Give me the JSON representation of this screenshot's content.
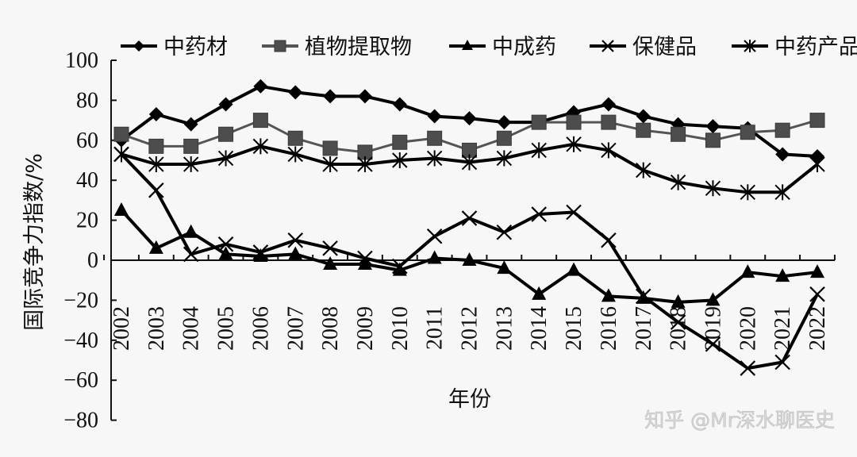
{
  "chart_data": {
    "type": "line",
    "title": "",
    "xlabel": "年份",
    "ylabel": "国际竞争力指数/%",
    "ylim": [
      -80,
      100
    ],
    "yticks": [
      100,
      80,
      60,
      40,
      20,
      0,
      -20,
      -40,
      -60,
      -80
    ],
    "grid": false,
    "legend_position": "top",
    "x": [
      "2002",
      "2003",
      "2004",
      "2005",
      "2006",
      "2007",
      "2008",
      "2009",
      "2010",
      "2011",
      "2012",
      "2013",
      "2014",
      "2015",
      "2016",
      "2017",
      "2018",
      "2019",
      "2020",
      "2021",
      "2022"
    ],
    "series": [
      {
        "name": "中药材",
        "marker": "diamond",
        "color": "#000000",
        "values": [
          60,
          73,
          68,
          78,
          87,
          84,
          82,
          82,
          78,
          72,
          71,
          69,
          69,
          74,
          78,
          72,
          68,
          67,
          66,
          53,
          52
        ]
      },
      {
        "name": "植物提取物",
        "marker": "square",
        "color": "#555555",
        "values": [
          63,
          57,
          57,
          63,
          70,
          61,
          56,
          54,
          59,
          61,
          55,
          61,
          69,
          69,
          69,
          65,
          63,
          60,
          64,
          65,
          70
        ]
      },
      {
        "name": "中成药",
        "marker": "triangle",
        "color": "#000000",
        "values": [
          25,
          6,
          14,
          3,
          2,
          3,
          -2,
          -2,
          -5,
          1,
          0,
          -4,
          -17,
          -5,
          -18,
          -19,
          -21,
          -20,
          -6,
          -8,
          -6
        ]
      },
      {
        "name": "保健品",
        "marker": "x",
        "color": "#000000",
        "values": [
          53,
          35,
          3,
          8,
          4,
          10,
          6,
          1,
          -3,
          12,
          21,
          14,
          23,
          24,
          10,
          -18,
          -31,
          -42,
          -54,
          -51,
          -17
        ]
      },
      {
        "name": "中药产品",
        "marker": "asterisk",
        "color": "#000000",
        "values": [
          53,
          48,
          48,
          51,
          57,
          53,
          48,
          48,
          50,
          51,
          49,
          51,
          55,
          58,
          55,
          45,
          39,
          36,
          34,
          34,
          48
        ]
      }
    ]
  },
  "watermark": "知乎 @Mr深水聊医史"
}
